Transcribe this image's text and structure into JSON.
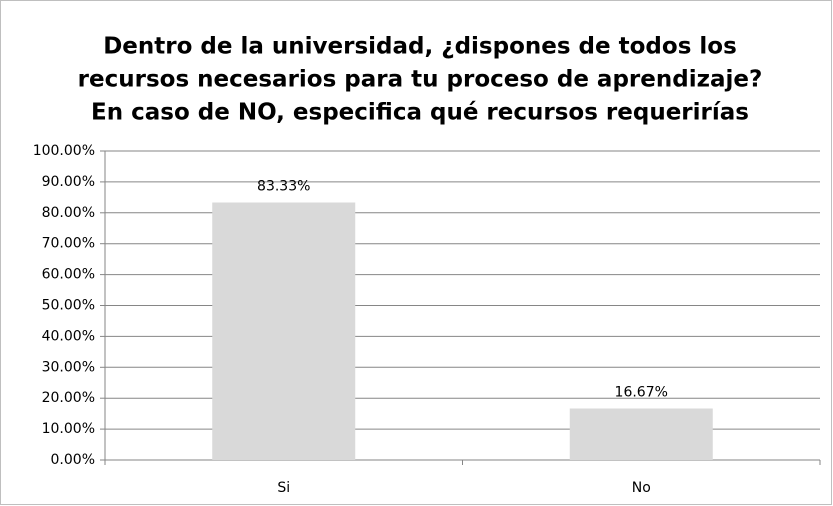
{
  "chart_data": {
    "type": "bar",
    "title": [
      "Dentro de la universidad, ¿dispones de todos los",
      "recursos necesarios para tu proceso de aprendizaje?",
      "En caso de NO, especifica qué recursos requerirías"
    ],
    "categories": [
      "Si",
      "No"
    ],
    "values": [
      83.33,
      16.67
    ],
    "value_labels": [
      "83.33%",
      "16.67%"
    ],
    "color": "#d9d9d9",
    "ylim": [
      0,
      100
    ],
    "yticks": [
      {
        "value": 0,
        "label": "0.00%"
      },
      {
        "value": 10,
        "label": "10.00%"
      },
      {
        "value": 20,
        "label": "20.00%"
      },
      {
        "value": 30,
        "label": "30.00%"
      },
      {
        "value": 40,
        "label": "40.00%"
      },
      {
        "value": 50,
        "label": "50.00%"
      },
      {
        "value": 60,
        "label": "60.00%"
      },
      {
        "value": 70,
        "label": "70.00%"
      },
      {
        "value": 80,
        "label": "80.00%"
      },
      {
        "value": 90,
        "label": "90.00%"
      },
      {
        "value": 100,
        "label": "100.00%"
      }
    ],
    "grid": true
  }
}
